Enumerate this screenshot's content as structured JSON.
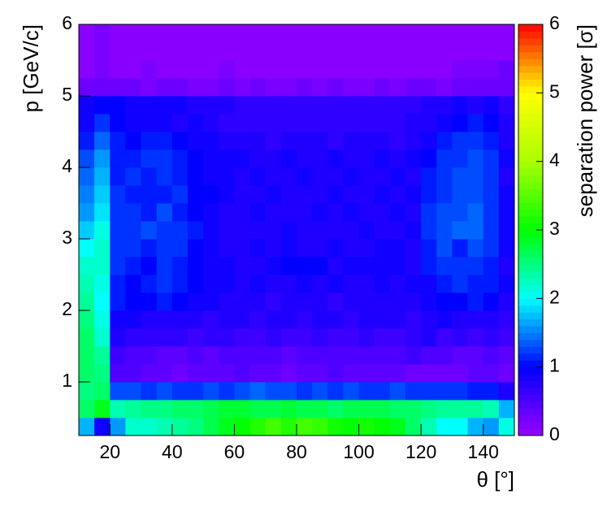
{
  "chart_data": {
    "type": "heatmap",
    "xlabel": "θ [°]",
    "ylabel": "p [GeV/c]",
    "zlabel": "separation power [σ]",
    "xlim": [
      10,
      150
    ],
    "ylim": [
      0.25,
      6
    ],
    "zlim": [
      0,
      6
    ],
    "xticks": [
      20,
      40,
      60,
      80,
      100,
      120,
      140
    ],
    "yticks": [
      1,
      2,
      3,
      4,
      5,
      6
    ],
    "zticks": [
      0,
      1,
      2,
      3,
      4,
      5,
      6
    ],
    "colorscale": [
      "#9900ff",
      "#0000ff",
      "#00ffff",
      "#00ff00",
      "#aaff00",
      "#ffff00",
      "#ff0000"
    ],
    "xbins": [
      10,
      15,
      20,
      25,
      30,
      35,
      40,
      45,
      50,
      55,
      60,
      65,
      70,
      75,
      80,
      85,
      90,
      95,
      100,
      105,
      110,
      115,
      120,
      125,
      130,
      135,
      140,
      145,
      150
    ],
    "ybins": [
      0.25,
      0.5,
      0.75,
      1,
      1.25,
      1.5,
      1.75,
      2,
      2.25,
      2.5,
      2.75,
      3,
      3.25,
      3.5,
      3.75,
      4,
      4.25,
      4.5,
      4.75,
      5,
      5.25,
      5.5,
      5.75,
      6
    ],
    "z": [
      [
        1.7,
        0.9,
        1.6,
        2.2,
        2.2,
        2.3,
        2.4,
        2.5,
        2.7,
        2.9,
        3.0,
        3.2,
        3.4,
        3.2,
        3.4,
        3.3,
        3.1,
        3.0,
        3.1,
        3.0,
        2.9,
        2.6,
        2.3,
        2.0,
        2.0,
        1.7,
        1.6,
        2.1
      ],
      [
        2.6,
        2.9,
        2.3,
        2.4,
        2.5,
        2.5,
        2.6,
        2.6,
        2.7,
        2.8,
        2.8,
        2.7,
        2.7,
        2.8,
        2.7,
        2.7,
        2.6,
        2.7,
        2.7,
        2.7,
        2.6,
        2.6,
        2.5,
        2.4,
        2.4,
        2.4,
        2.3,
        1.7
      ],
      [
        2.5,
        2.6,
        1.3,
        1.3,
        1.2,
        1.3,
        1.2,
        1.2,
        1.3,
        1.2,
        1.3,
        1.4,
        1.3,
        1.3,
        1.2,
        1.3,
        1.2,
        1.3,
        1.2,
        1.2,
        1.3,
        1.2,
        1.2,
        1.2,
        1.2,
        1.1,
        1.1,
        0.8
      ],
      [
        2.6,
        2.5,
        0.5,
        0.5,
        0.4,
        0.4,
        0.3,
        0.4,
        0.4,
        0.4,
        0.5,
        0.4,
        0.4,
        0.3,
        0.4,
        0.4,
        0.5,
        0.4,
        0.4,
        0.4,
        0.4,
        0.3,
        0.3,
        0.3,
        0.3,
        0.4,
        0.4,
        0.3
      ],
      [
        2.6,
        2.4,
        0.6,
        0.5,
        0.5,
        0.4,
        0.4,
        0.5,
        0.4,
        0.5,
        0.5,
        0.5,
        0.5,
        0.4,
        0.5,
        0.5,
        0.5,
        0.5,
        0.5,
        0.5,
        0.5,
        0.6,
        0.5,
        0.5,
        0.4,
        0.4,
        0.5,
        0.4
      ],
      [
        2.6,
        2.2,
        0.8,
        0.7,
        0.7,
        0.7,
        0.7,
        0.6,
        0.7,
        0.7,
        0.6,
        0.6,
        0.7,
        0.6,
        0.6,
        0.7,
        0.6,
        0.6,
        0.7,
        0.6,
        0.6,
        0.7,
        0.8,
        0.6,
        0.7,
        0.6,
        0.7,
        0.6
      ],
      [
        2.5,
        2.1,
        0.9,
        0.9,
        0.8,
        0.8,
        0.8,
        0.8,
        0.7,
        0.8,
        0.8,
        0.7,
        0.8,
        0.8,
        0.7,
        0.8,
        0.8,
        0.7,
        0.8,
        0.8,
        0.8,
        0.7,
        0.8,
        0.9,
        0.8,
        0.8,
        0.8,
        0.7
      ],
      [
        2.4,
        2.0,
        1.1,
        1.0,
        1.0,
        1.1,
        1.0,
        0.9,
        0.9,
        0.8,
        0.8,
        0.8,
        0.7,
        0.8,
        0.8,
        0.8,
        0.7,
        0.8,
        0.8,
        0.8,
        0.8,
        0.8,
        0.9,
        1.0,
        1.0,
        1.1,
        1.0,
        0.8
      ],
      [
        2.3,
        2.1,
        1.1,
        1.0,
        1.1,
        1.2,
        1.1,
        1.0,
        0.9,
        0.9,
        0.8,
        0.9,
        0.8,
        0.8,
        0.9,
        0.8,
        0.9,
        0.8,
        0.8,
        0.9,
        0.8,
        0.9,
        0.9,
        1.1,
        1.2,
        1.1,
        1.1,
        0.9
      ],
      [
        2.2,
        2.2,
        1.2,
        1.1,
        1.0,
        1.2,
        1.1,
        1.0,
        0.9,
        0.9,
        0.8,
        0.8,
        0.9,
        1.0,
        1.0,
        1.0,
        0.8,
        0.9,
        0.9,
        0.9,
        0.9,
        0.8,
        1.1,
        1.2,
        1.2,
        1.2,
        1.1,
        0.8
      ],
      [
        2.0,
        2.2,
        1.2,
        1.2,
        1.1,
        1.2,
        1.2,
        1.0,
        0.9,
        0.8,
        0.8,
        0.9,
        0.8,
        0.9,
        0.8,
        0.8,
        0.9,
        0.8,
        0.8,
        0.9,
        0.9,
        0.8,
        1.1,
        1.3,
        1.1,
        1.3,
        1.2,
        0.9
      ],
      [
        1.8,
        2.1,
        1.2,
        1.2,
        1.3,
        1.2,
        1.2,
        1.1,
        0.9,
        0.8,
        0.8,
        0.8,
        0.8,
        0.9,
        0.8,
        0.8,
        0.8,
        0.8,
        0.9,
        0.8,
        0.8,
        0.9,
        1.2,
        1.3,
        1.4,
        1.4,
        1.2,
        0.9
      ],
      [
        1.6,
        1.9,
        1.2,
        1.2,
        1.1,
        1.3,
        1.1,
        1.0,
        0.9,
        0.8,
        0.8,
        0.9,
        0.8,
        0.8,
        0.8,
        0.9,
        0.8,
        0.9,
        0.8,
        0.8,
        0.9,
        0.8,
        1.2,
        1.3,
        1.3,
        1.4,
        1.2,
        0.9
      ],
      [
        1.5,
        1.8,
        1.2,
        1.1,
        1.1,
        1.1,
        1.2,
        1.0,
        1.0,
        0.9,
        0.8,
        0.8,
        0.9,
        0.8,
        0.8,
        0.8,
        0.9,
        0.8,
        0.8,
        0.9,
        0.8,
        0.9,
        1.1,
        1.2,
        1.3,
        1.3,
        1.2,
        0.9
      ],
      [
        1.4,
        1.7,
        1.1,
        1.2,
        1.1,
        1.2,
        1.1,
        1.0,
        0.9,
        0.9,
        0.8,
        0.9,
        0.8,
        0.8,
        0.9,
        0.8,
        0.8,
        0.9,
        0.8,
        0.8,
        0.9,
        0.8,
        1.1,
        1.2,
        1.3,
        1.3,
        1.2,
        0.8
      ],
      [
        1.3,
        1.6,
        1.1,
        1.1,
        1.2,
        1.2,
        1.1,
        1.0,
        0.9,
        0.9,
        0.9,
        0.8,
        0.8,
        0.9,
        0.8,
        0.8,
        0.9,
        0.8,
        0.8,
        0.9,
        0.8,
        0.9,
        1.0,
        1.2,
        1.2,
        1.3,
        1.2,
        0.9
      ],
      [
        1.1,
        1.4,
        1.1,
        1.0,
        1.1,
        1.1,
        1.0,
        0.9,
        0.9,
        0.8,
        0.8,
        0.8,
        0.7,
        0.8,
        0.8,
        0.8,
        0.7,
        0.8,
        0.8,
        0.8,
        0.7,
        0.8,
        0.9,
        1.1,
        1.2,
        1.2,
        1.1,
        0.8
      ],
      [
        0.9,
        1.2,
        1.0,
        0.9,
        0.9,
        0.9,
        0.8,
        0.9,
        0.8,
        0.7,
        0.7,
        0.7,
        0.7,
        0.7,
        0.7,
        0.7,
        0.7,
        0.7,
        0.7,
        0.7,
        0.7,
        0.8,
        0.8,
        0.9,
        1.0,
        1.1,
        1.0,
        0.8
      ],
      [
        0.9,
        1.0,
        1.0,
        0.9,
        0.9,
        0.9,
        0.9,
        0.8,
        0.8,
        0.8,
        0.7,
        0.7,
        0.7,
        0.7,
        0.7,
        0.7,
        0.7,
        0.7,
        0.7,
        0.7,
        0.7,
        0.7,
        0.8,
        0.8,
        0.9,
        0.8,
        0.9,
        0.7
      ],
      [
        0.3,
        0.3,
        0.3,
        0.3,
        0.2,
        0.3,
        0.3,
        0.2,
        0.2,
        0.3,
        0.2,
        0.3,
        0.2,
        0.2,
        0.3,
        0.2,
        0.3,
        0.2,
        0.2,
        0.3,
        0.2,
        0.3,
        0.3,
        0.2,
        0.3,
        0.3,
        0.3,
        0.3
      ],
      [
        0.1,
        0.2,
        0.1,
        0.1,
        0.2,
        0.1,
        0.1,
        0.1,
        0.1,
        0.2,
        0.1,
        0.1,
        0.1,
        0.1,
        0.1,
        0.1,
        0.1,
        0.1,
        0.1,
        0.1,
        0.1,
        0.1,
        0.1,
        0.1,
        0.2,
        0.2,
        0.2,
        0.3
      ],
      [
        0.1,
        0.2,
        0.1,
        0.1,
        0.1,
        0.1,
        0.1,
        0.1,
        0.1,
        0.1,
        0.1,
        0.1,
        0.1,
        0.1,
        0.1,
        0.1,
        0.1,
        0.1,
        0.1,
        0.1,
        0.1,
        0.1,
        0.1,
        0.1,
        0.1,
        0.1,
        0.1,
        0.1
      ],
      [
        0.1,
        0.2,
        0.1,
        0.1,
        0.1,
        0.1,
        0.1,
        0.1,
        0.1,
        0.1,
        0.1,
        0.1,
        0.1,
        0.1,
        0.1,
        0.1,
        0.1,
        0.1,
        0.1,
        0.1,
        0.1,
        0.1,
        0.1,
        0.1,
        0.1,
        0.1,
        0.1,
        0.1
      ]
    ]
  }
}
